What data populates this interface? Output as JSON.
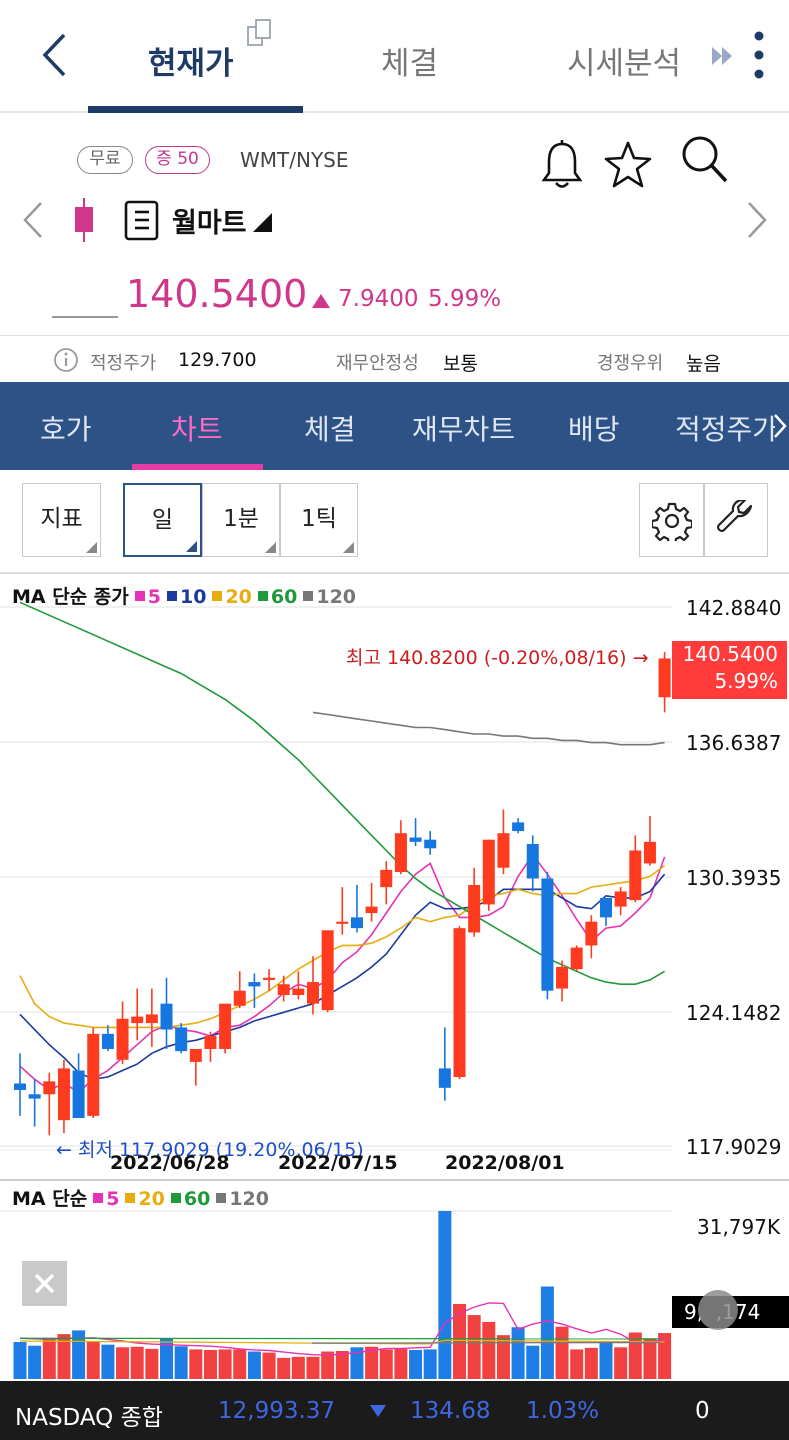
{
  "header": {
    "tabs": [
      {
        "label": "현재가"
      },
      {
        "label": "체결"
      },
      {
        "label": "시세분석"
      }
    ]
  },
  "stock": {
    "badge_free": "무료",
    "badge_margin": "증 50",
    "ticker": "WMT/NYSE",
    "name": "월마트",
    "price": "140.5400",
    "change": "7.9400",
    "change_pct": "5.99%",
    "accent": "#d0368a"
  },
  "info": {
    "fair_label": "적정주가",
    "fair_value": "129.700",
    "stability_label": "재무안정성",
    "stability_value": "보통",
    "compete_label": "경쟁우위",
    "compete_value": "높음"
  },
  "subtabs": [
    {
      "label": "호가"
    },
    {
      "label": "차트"
    },
    {
      "label": "체결"
    },
    {
      "label": "재무차트"
    },
    {
      "label": "배당"
    },
    {
      "label": "적정주가"
    }
  ],
  "toolbar": {
    "indicator": "지표",
    "day": "일",
    "min1": "1분",
    "tick1": "1틱"
  },
  "chart_data": {
    "type": "candlestick",
    "legend_prefix": "MA 단순 종가",
    "ma_legend": [
      {
        "name": "5",
        "color": "#e632b4"
      },
      {
        "name": "10",
        "color": "#1b3aa0"
      },
      {
        "name": "20",
        "color": "#e6ac10"
      },
      {
        "name": "60",
        "color": "#1f9a3a"
      },
      {
        "name": "120",
        "color": "#777777"
      }
    ],
    "y_ticks": [
      "142.8840",
      "136.6387",
      "130.3935",
      "124.1482",
      "117.9029"
    ],
    "ylim": [
      117.9029,
      142.884
    ],
    "x_ticks": [
      "2022/06/28",
      "2022/07/15",
      "2022/08/01"
    ],
    "high_annotation": "최고 140.8200 (-0.20%,08/16) →",
    "low_annotation": "← 최저 117.9029 (19.20%,06/15)",
    "current_price": "140.5400",
    "current_pct": "5.99%",
    "candles": [
      {
        "o": 120.8,
        "h": 122.2,
        "l": 119.3,
        "c": 120.5
      },
      {
        "o": 120.3,
        "h": 121.0,
        "l": 118.8,
        "c": 120.1
      },
      {
        "o": 120.3,
        "h": 121.3,
        "l": 118.4,
        "c": 120.9
      },
      {
        "o": 119.1,
        "h": 121.9,
        "l": 118.5,
        "c": 121.5
      },
      {
        "o": 121.4,
        "h": 122.2,
        "l": 119.3,
        "c": 119.2
      },
      {
        "o": 119.3,
        "h": 123.4,
        "l": 119.2,
        "c": 123.1
      },
      {
        "o": 123.1,
        "h": 123.5,
        "l": 122.3,
        "c": 122.4
      },
      {
        "o": 121.9,
        "h": 124.6,
        "l": 121.7,
        "c": 123.8
      },
      {
        "o": 123.6,
        "h": 125.2,
        "l": 122.8,
        "c": 123.9
      },
      {
        "o": 123.6,
        "h": 125.2,
        "l": 122.5,
        "c": 124.0
      },
      {
        "o": 124.5,
        "h": 125.7,
        "l": 122.4,
        "c": 123.3
      },
      {
        "o": 123.4,
        "h": 123.6,
        "l": 122.2,
        "c": 122.3
      },
      {
        "o": 121.8,
        "h": 122.4,
        "l": 120.7,
        "c": 122.4
      },
      {
        "o": 122.4,
        "h": 123.2,
        "l": 121.8,
        "c": 123.0
      },
      {
        "o": 122.4,
        "h": 124.4,
        "l": 122.2,
        "c": 124.5
      },
      {
        "o": 124.4,
        "h": 126.0,
        "l": 124.3,
        "c": 125.1
      },
      {
        "o": 125.5,
        "h": 125.9,
        "l": 124.3,
        "c": 125.3
      },
      {
        "o": 125.6,
        "h": 126.1,
        "l": 125.1,
        "c": 125.7
      },
      {
        "o": 124.9,
        "h": 125.8,
        "l": 124.6,
        "c": 125.4
      },
      {
        "o": 124.9,
        "h": 126.0,
        "l": 124.7,
        "c": 125.2
      },
      {
        "o": 124.5,
        "h": 126.7,
        "l": 124.0,
        "c": 125.5
      },
      {
        "o": 124.2,
        "h": 127.7,
        "l": 124.1,
        "c": 127.9
      },
      {
        "o": 128.2,
        "h": 129.9,
        "l": 127.7,
        "c": 128.3
      },
      {
        "o": 128.5,
        "h": 130.0,
        "l": 127.8,
        "c": 128.0
      },
      {
        "o": 128.7,
        "h": 130.1,
        "l": 128.3,
        "c": 129.0
      },
      {
        "o": 129.9,
        "h": 131.1,
        "l": 129.1,
        "c": 130.7
      },
      {
        "o": 130.6,
        "h": 133.0,
        "l": 130.5,
        "c": 132.4
      },
      {
        "o": 132.2,
        "h": 133.1,
        "l": 131.8,
        "c": 132.0
      },
      {
        "o": 132.1,
        "h": 132.5,
        "l": 131.4,
        "c": 131.7
      },
      {
        "o": 121.5,
        "h": 123.4,
        "l": 120.0,
        "c": 120.6
      },
      {
        "o": 121.1,
        "h": 128.1,
        "l": 121.0,
        "c": 128.0
      },
      {
        "o": 127.8,
        "h": 130.8,
        "l": 127.6,
        "c": 130.0
      },
      {
        "o": 129.1,
        "h": 132.1,
        "l": 128.8,
        "c": 132.1
      },
      {
        "o": 130.8,
        "h": 133.5,
        "l": 130.5,
        "c": 132.4
      },
      {
        "o": 132.9,
        "h": 133.1,
        "l": 132.4,
        "c": 132.5
      },
      {
        "o": 131.9,
        "h": 132.3,
        "l": 129.7,
        "c": 130.3
      },
      {
        "o": 130.3,
        "h": 130.6,
        "l": 124.7,
        "c": 125.1
      },
      {
        "o": 125.2,
        "h": 126.5,
        "l": 124.6,
        "c": 126.2
      },
      {
        "o": 126.1,
        "h": 127.2,
        "l": 126.0,
        "c": 127.1
      },
      {
        "o": 127.2,
        "h": 128.6,
        "l": 126.6,
        "c": 128.3
      },
      {
        "o": 129.4,
        "h": 129.4,
        "l": 128.1,
        "c": 128.5
      },
      {
        "o": 129.0,
        "h": 129.9,
        "l": 128.6,
        "c": 129.7
      },
      {
        "o": 129.3,
        "h": 132.3,
        "l": 129.2,
        "c": 131.6
      },
      {
        "o": 131.0,
        "h": 133.2,
        "l": 130.9,
        "c": 132.0
      },
      {
        "o": 138.7,
        "h": 140.8,
        "l": 138.0,
        "c": 140.5
      }
    ],
    "ma_series": [
      {
        "name": "5",
        "color": "#e632b4",
        "values": [
          121.6,
          121.0,
          120.5,
          120.8,
          120.4,
          121.0,
          121.4,
          122.0,
          122.6,
          123.2,
          123.5,
          123.3,
          123.2,
          123.0,
          123.4,
          123.5,
          123.9,
          124.4,
          125.0,
          125.4,
          125.2,
          125.6,
          126.4,
          126.9,
          127.7,
          128.7,
          129.7,
          130.5,
          131.0,
          129.4,
          128.5,
          128.5,
          128.6,
          129.0,
          130.4,
          131.4,
          130.5,
          129.5,
          128.4,
          127.4,
          128.0,
          128.1,
          128.7,
          129.4,
          131.3
        ]
      },
      {
        "name": "10",
        "color": "#1b3aa0",
        "values": [
          124.0,
          123.3,
          122.6,
          122.0,
          121.3,
          121.0,
          121.1,
          121.4,
          121.7,
          122.2,
          122.5,
          122.7,
          122.8,
          123.0,
          123.2,
          123.4,
          123.7,
          123.9,
          124.1,
          124.3,
          124.5,
          124.9,
          125.3,
          125.7,
          126.2,
          126.8,
          127.7,
          128.6,
          129.2,
          128.9,
          128.9,
          129.0,
          129.3,
          129.8,
          129.8,
          129.8,
          129.8,
          129.4,
          129.0,
          128.9,
          129.5,
          129.4,
          129.4,
          129.7,
          130.5
        ]
      },
      {
        "name": "20",
        "color": "#e6ac10",
        "values": [
          125.8,
          124.5,
          123.9,
          123.6,
          123.5,
          123.4,
          123.4,
          123.4,
          123.4,
          123.4,
          123.4,
          123.5,
          123.6,
          123.8,
          124.1,
          124.4,
          124.7,
          125.1,
          125.6,
          126.1,
          126.5,
          126.9,
          127.2,
          127.2,
          127.3,
          127.6,
          128.0,
          128.5,
          128.3,
          128.5,
          128.6,
          129.1,
          129.5,
          129.6,
          129.8,
          129.6,
          129.5,
          129.6,
          129.6,
          129.9,
          130.0,
          130.1,
          130.2,
          130.4,
          130.9
        ]
      },
      {
        "name": "60",
        "color": "#1f9a3a",
        "values": [
          143.1,
          142.8,
          142.5,
          142.2,
          141.9,
          141.6,
          141.3,
          141.0,
          140.7,
          140.4,
          140.1,
          139.8,
          139.4,
          139.0,
          138.6,
          138.1,
          137.6,
          137.0,
          136.4,
          135.8,
          135.1,
          134.4,
          133.7,
          133.0,
          132.3,
          131.6,
          130.9,
          130.3,
          129.8,
          129.4,
          129.0,
          128.6,
          128.2,
          127.8,
          127.4,
          127.0,
          126.6,
          126.3,
          126.0,
          125.7,
          125.5,
          125.4,
          125.4,
          125.6,
          126.0
        ]
      },
      {
        "name": "120",
        "color": "#777777",
        "values": [
          null,
          null,
          null,
          null,
          null,
          null,
          null,
          null,
          null,
          null,
          null,
          null,
          null,
          null,
          null,
          null,
          null,
          null,
          null,
          null,
          138.0,
          137.9,
          137.8,
          137.7,
          137.6,
          137.5,
          137.4,
          137.3,
          137.3,
          137.2,
          137.1,
          137.0,
          137.0,
          136.9,
          136.9,
          136.8,
          136.8,
          136.7,
          136.7,
          136.6,
          136.6,
          136.5,
          136.5,
          136.5,
          136.6
        ]
      }
    ],
    "volume": {
      "legend_prefix": "MA 단순",
      "ma_legend": [
        {
          "name": "5",
          "color": "#e632b4"
        },
        {
          "name": "20",
          "color": "#e6ac10"
        },
        {
          "name": "60",
          "color": "#1f9a3a"
        },
        {
          "name": "120",
          "color": "#777777"
        }
      ],
      "top_label": "31,797K",
      "current_label": "9,  ,174",
      "max": 31797,
      "bars": [
        7000,
        6300,
        7600,
        8500,
        9200,
        7200,
        6500,
        6000,
        6100,
        5700,
        7700,
        6200,
        5600,
        5500,
        5600,
        5600,
        5200,
        5000,
        4000,
        4200,
        4200,
        5200,
        5300,
        6000,
        6100,
        5600,
        5700,
        5500,
        5600,
        31800,
        14200,
        12100,
        10800,
        8300,
        9800,
        6300,
        17500,
        9900,
        5600,
        5900,
        7000,
        6000,
        8800,
        7500,
        8700
      ],
      "ma_values": [
        7700,
        7600,
        7500,
        7700,
        7700,
        7800,
        7500,
        7200,
        6800,
        6600,
        6500,
        6400,
        6300,
        6200,
        6000,
        5700,
        5500,
        5400,
        5100,
        4800,
        4600,
        4500,
        4700,
        5000,
        5400,
        5800,
        5800,
        5900,
        6000,
        10600,
        12400,
        13600,
        14400,
        14300,
        9400,
        10400,
        11000,
        10400,
        9500,
        8700,
        9400,
        8500,
        6900,
        6900,
        7600
      ]
    }
  },
  "bottom": {
    "index_name": "NASDAQ 종합",
    "index_value": "12,993.37",
    "index_change": "134.68",
    "index_pct": "1.03%",
    "count": "0"
  }
}
